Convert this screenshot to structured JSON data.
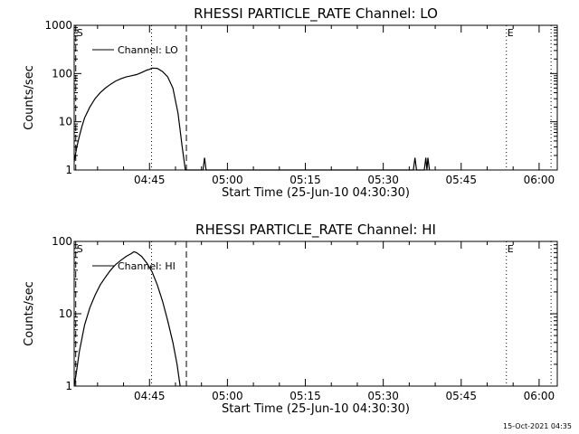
{
  "chart_data": [
    {
      "type": "line",
      "title": "RHESSI PARTICLE_RATE Channel: LO",
      "xlabel": "Start Time (25-Jun-10 04:30:30)",
      "ylabel": "Counts/sec",
      "yscale": "log",
      "ylim": [
        1,
        1000
      ],
      "xlim_min_after_start": [
        0,
        93
      ],
      "x_ticks": [
        {
          "label": "04:45",
          "t": 14.5
        },
        {
          "label": "05:00",
          "t": 29.5
        },
        {
          "label": "05:15",
          "t": 44.5
        },
        {
          "label": "05:30",
          "t": 59.5
        },
        {
          "label": "05:45",
          "t": 74.5
        },
        {
          "label": "06:00",
          "t": 89.5
        }
      ],
      "y_ticks": [
        {
          "label": "1",
          "v": 1
        },
        {
          "label": "10",
          "v": 10
        },
        {
          "label": "100",
          "v": 100
        },
        {
          "label": "1000",
          "v": 1000
        }
      ],
      "legend": "Channel: LO",
      "markers": [
        {
          "label": "S",
          "t": 0.3
        },
        {
          "label": "E",
          "t": 83.2
        }
      ],
      "dashed_lines_t": [
        0.3,
        21.6
      ],
      "dotted_lines_t": [
        14.9,
        83.2,
        91.8
      ],
      "series": [
        {
          "name": "Channel: LO",
          "points": [
            [
              0,
              1.5
            ],
            [
              0.5,
              3
            ],
            [
              1,
              5
            ],
            [
              1.5,
              8
            ],
            [
              2,
              12
            ],
            [
              3,
              20
            ],
            [
              4,
              30
            ],
            [
              5,
              40
            ],
            [
              6,
              50
            ],
            [
              7,
              60
            ],
            [
              8,
              70
            ],
            [
              9,
              78
            ],
            [
              10,
              85
            ],
            [
              11,
              90
            ],
            [
              12,
              95
            ],
            [
              13,
              105
            ],
            [
              14,
              118
            ],
            [
              14.5,
              122
            ],
            [
              15,
              130
            ],
            [
              16,
              128
            ],
            [
              17,
              110
            ],
            [
              18,
              85
            ],
            [
              19,
              50
            ],
            [
              20,
              15
            ],
            [
              20.8,
              3
            ],
            [
              21.4,
              1
            ],
            [
              24.8,
              1
            ],
            [
              25.1,
              1.8
            ],
            [
              25.4,
              1
            ],
            [
              65.3,
              1
            ],
            [
              65.6,
              1.8
            ],
            [
              65.9,
              1
            ],
            [
              67.4,
              1
            ],
            [
              67.7,
              1.8
            ],
            [
              67.9,
              1
            ],
            [
              68.1,
              1.8
            ],
            [
              68.4,
              1
            ]
          ]
        }
      ]
    },
    {
      "type": "line",
      "title": "RHESSI PARTICLE_RATE Channel: HI",
      "xlabel": "Start Time (25-Jun-10 04:30:30)",
      "ylabel": "Counts/sec",
      "yscale": "log",
      "ylim": [
        1,
        100
      ],
      "xlim_min_after_start": [
        0,
        93
      ],
      "x_ticks": [
        {
          "label": "04:45",
          "t": 14.5
        },
        {
          "label": "05:00",
          "t": 29.5
        },
        {
          "label": "05:15",
          "t": 44.5
        },
        {
          "label": "05:30",
          "t": 59.5
        },
        {
          "label": "05:45",
          "t": 74.5
        },
        {
          "label": "06:00",
          "t": 89.5
        }
      ],
      "y_ticks": [
        {
          "label": "1",
          "v": 1
        },
        {
          "label": "10",
          "v": 10
        },
        {
          "label": "100",
          "v": 100
        }
      ],
      "legend": "Channel: HI",
      "markers": [
        {
          "label": "S",
          "t": 0.3
        },
        {
          "label": "E",
          "t": 83.2
        }
      ],
      "dashed_lines_t": [
        0.3,
        21.6
      ],
      "dotted_lines_t": [
        14.9,
        83.2,
        91.8
      ],
      "series": [
        {
          "name": "Channel: HI",
          "points": [
            [
              0,
              1
            ],
            [
              0.4,
              1.5
            ],
            [
              1,
              3
            ],
            [
              2,
              7
            ],
            [
              3,
              12
            ],
            [
              4,
              18
            ],
            [
              5,
              25
            ],
            [
              6,
              32
            ],
            [
              7,
              40
            ],
            [
              8,
              48
            ],
            [
              9,
              55
            ],
            [
              10,
              62
            ],
            [
              11,
              68
            ],
            [
              11.5,
              72
            ],
            [
              12,
              70
            ],
            [
              13,
              62
            ],
            [
              14,
              50
            ],
            [
              15,
              38
            ],
            [
              16,
              25
            ],
            [
              17,
              15
            ],
            [
              18,
              8
            ],
            [
              19,
              4
            ],
            [
              19.8,
              2
            ],
            [
              20.4,
              1
            ]
          ]
        }
      ]
    }
  ],
  "footer_timestamp": "15-Oct-2021 04:35"
}
